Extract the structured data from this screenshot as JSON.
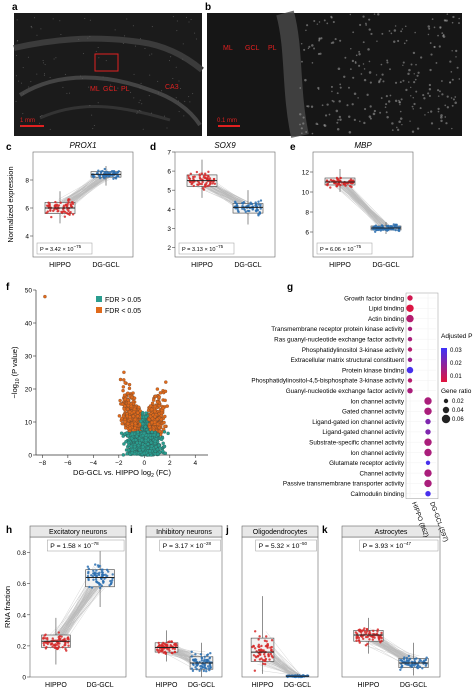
{
  "panels": {
    "a": {
      "label": "a",
      "annotations": [
        "ML",
        "GCL",
        "PL",
        "CA3"
      ],
      "scale": "1 mm"
    },
    "b": {
      "label": "b",
      "annotations": [
        "ML",
        "GCL",
        "PL"
      ],
      "scale": "0.1 mm"
    }
  },
  "colors": {
    "hippo": "#d62828",
    "dggcl": "#2a6fb0",
    "fdr_low": "#e06a1b",
    "fdr_high": "#2a9d8f"
  },
  "chart_data": [
    {
      "panel": "c",
      "type": "box",
      "title": "PROX1",
      "ylabel": "Normalized expression",
      "categories": [
        "HIPPO",
        "DG-GCL"
      ],
      "series": [
        {
          "name": "HIPPO",
          "median": 6.0,
          "q1": 5.6,
          "q3": 6.4,
          "min": 4.9,
          "max": 7.2
        },
        {
          "name": "DG-GCL",
          "median": 8.4,
          "q1": 8.2,
          "q3": 8.6,
          "min": 7.6,
          "max": 9.0
        }
      ],
      "ylim": [
        2.5,
        10
      ],
      "yticks": [
        4,
        6,
        8
      ],
      "pvalue": {
        "prefix": "P = 3.42 × 10",
        "exp": "−75"
      }
    },
    {
      "panel": "d",
      "type": "box",
      "title": "SOX9",
      "ylabel": "",
      "categories": [
        "HIPPO",
        "DG-GCL"
      ],
      "series": [
        {
          "name": "HIPPO",
          "median": 5.5,
          "q1": 5.2,
          "q3": 5.8,
          "min": 4.6,
          "max": 6.6
        },
        {
          "name": "DG-GCL",
          "median": 4.1,
          "q1": 3.8,
          "q3": 4.3,
          "min": 3.2,
          "max": 5.0
        }
      ],
      "ylim": [
        1.5,
        7
      ],
      "yticks": [
        2,
        3,
        4,
        5,
        6,
        7
      ],
      "pvalue": {
        "prefix": "P = 3.13 × 10",
        "exp": "−75"
      }
    },
    {
      "panel": "e",
      "type": "box",
      "title": "MBP",
      "ylabel": "",
      "categories": [
        "HIPPO",
        "DG-GCL"
      ],
      "series": [
        {
          "name": "HIPPO",
          "median": 11.0,
          "q1": 10.7,
          "q3": 11.4,
          "min": 10.0,
          "max": 12.3
        },
        {
          "name": "DG-GCL",
          "median": 6.4,
          "q1": 6.2,
          "q3": 6.6,
          "min": 5.8,
          "max": 7.0
        }
      ],
      "ylim": [
        3.5,
        14
      ],
      "yticks": [
        6,
        8,
        10,
        12
      ],
      "pvalue": {
        "prefix": "P = 6.06 × 10",
        "exp": "−75"
      }
    },
    {
      "panel": "f",
      "type": "scatter",
      "title": "",
      "xlabel": "DG-GCL vs. HIPPO log",
      "xlabel_sub": "2",
      "xlabel_end": " (FC)",
      "ylabel": "−log",
      "ylabel_sub": "10",
      "ylabel_end": " (P value)",
      "xlim": [
        -8.5,
        5
      ],
      "ylim": [
        0,
        50
      ],
      "xticks": [
        -8,
        -6,
        -4,
        -2,
        0,
        2,
        4
      ],
      "yticks": [
        0,
        10,
        20,
        30,
        40,
        50
      ],
      "legend": [
        {
          "name": "FDR > 0.05",
          "color": "#2a9d8f"
        },
        {
          "name": "FDR < 0.05",
          "color": "#e06a1b"
        }
      ]
    },
    {
      "panel": "g",
      "type": "dot",
      "terms": [
        "Growth factor binding",
        "Lipid binding",
        "Actin binding",
        "Transmembrane receptor protein kinase activity",
        "Ras guanyl-nucleotide exchange factor activity",
        "Phosphatidylinositol 3-kinase activity",
        "Extracellular matrix structural constituent",
        "Protein kinase binding",
        "Phosphatidylinositol-4,5-bisphosphate 3-kinase activity",
        "Guanyl-nucleotide exchange factor activity",
        "Ion channel activity",
        "Gated channel activity",
        "Ligand-gated ion channel activity",
        "Ligand-gated channel activity",
        "Substrate-specific channel activity",
        "Ion channel activity",
        "Glutamate receptor activity",
        "Channel activity",
        "Passive transmembrane transporter activity",
        "Calmodulin binding"
      ],
      "columns": [
        "HIPPO (862)",
        "DG-GCL (597)"
      ],
      "column_index": [
        0,
        0,
        0,
        0,
        0,
        0,
        0,
        0,
        0,
        0,
        1,
        1,
        1,
        1,
        1,
        1,
        1,
        1,
        1,
        1
      ],
      "gene_ratio": [
        0.03,
        0.05,
        0.05,
        0.02,
        0.02,
        0.02,
        0.02,
        0.04,
        0.02,
        0.03,
        0.05,
        0.05,
        0.03,
        0.03,
        0.05,
        0.05,
        0.02,
        0.05,
        0.05,
        0.03
      ],
      "adjusted_p": [
        0.005,
        0.003,
        0.01,
        0.012,
        0.012,
        0.01,
        0.015,
        0.03,
        0.01,
        0.012,
        0.012,
        0.012,
        0.02,
        0.02,
        0.012,
        0.012,
        0.03,
        0.012,
        0.012,
        0.03
      ],
      "legend_color_title": "Adjusted P value",
      "legend_color_ticks": [
        0.01,
        0.02,
        0.03
      ],
      "legend_size_title": "Gene ratio",
      "legend_size_ticks": [
        0.02,
        0.04,
        0.06
      ]
    },
    {
      "panel": "h",
      "type": "box",
      "title": "Excitatory neurons",
      "ylabel": "RNA fraction",
      "categories": [
        "HIPPO",
        "DG-GCL"
      ],
      "series": [
        {
          "name": "HIPPO",
          "median": 0.23,
          "q1": 0.19,
          "q3": 0.27,
          "min": 0.08,
          "max": 0.38
        },
        {
          "name": "DG-GCL",
          "median": 0.64,
          "q1": 0.58,
          "q3": 0.69,
          "min": 0.45,
          "max": 0.85
        }
      ],
      "ylim": [
        0,
        0.9
      ],
      "yticks": [
        0,
        0.2,
        0.4,
        0.6,
        0.8
      ],
      "pvalue": {
        "prefix": "P = 1.58 × 10",
        "exp": "−78"
      }
    },
    {
      "panel": "i",
      "type": "box",
      "title": "Inhibitory neurons",
      "ylabel": "",
      "categories": [
        "HIPPO",
        "DG-GCL"
      ],
      "series": [
        {
          "name": "HIPPO",
          "median": 0.19,
          "q1": 0.16,
          "q3": 0.22,
          "min": 0.1,
          "max": 0.3
        },
        {
          "name": "DG-GCL",
          "median": 0.09,
          "q1": 0.05,
          "q3": 0.13,
          "min": 0.0,
          "max": 0.22
        }
      ],
      "ylim": [
        0,
        0.9
      ],
      "yticks": [],
      "pvalue": {
        "prefix": "P = 3.17 × 10",
        "exp": "−28"
      }
    },
    {
      "panel": "j",
      "type": "box",
      "title": "Oligodendrocytes",
      "ylabel": "",
      "categories": [
        "HIPPO",
        "DG-GCL"
      ],
      "series": [
        {
          "name": "HIPPO",
          "median": 0.16,
          "q1": 0.1,
          "q3": 0.25,
          "min": 0.02,
          "max": 0.52
        },
        {
          "name": "DG-GCL",
          "median": 0.005,
          "q1": 0.002,
          "q3": 0.01,
          "min": 0.0,
          "max": 0.02
        }
      ],
      "ylim": [
        0,
        0.9
      ],
      "yticks": [],
      "pvalue": {
        "prefix": "P = 5.32 × 10",
        "exp": "−50"
      }
    },
    {
      "panel": "k",
      "type": "box",
      "title": "Astrocytes",
      "ylabel": "",
      "categories": [
        "HIPPO",
        "DG-GCL"
      ],
      "series": [
        {
          "name": "HIPPO",
          "median": 0.27,
          "q1": 0.23,
          "q3": 0.3,
          "min": 0.15,
          "max": 0.38
        },
        {
          "name": "DG-GCL",
          "median": 0.09,
          "q1": 0.06,
          "q3": 0.12,
          "min": 0.01,
          "max": 0.22
        }
      ],
      "ylim": [
        0,
        0.9
      ],
      "yticks": [],
      "pvalue": {
        "prefix": "P = 3.93 × 10",
        "exp": "−47"
      }
    }
  ]
}
